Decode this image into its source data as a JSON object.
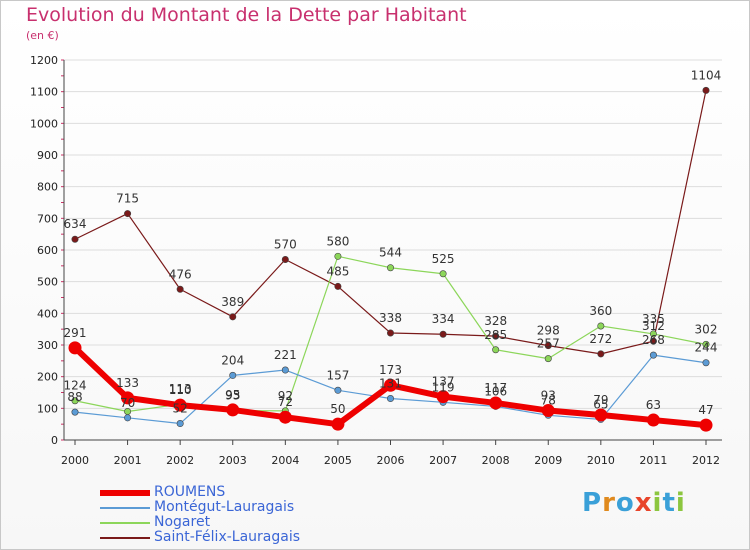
{
  "title": "Evolution du Montant de la Dette par Habitant",
  "subtitle": "(en €)",
  "logo": {
    "letters": [
      "P",
      "r",
      "o",
      "x",
      "i",
      "t",
      "i"
    ],
    "colors": [
      "#3aa0d8",
      "#e08a1e",
      "#3aa0d8",
      "#e8442a",
      "#8cc63f",
      "#3aa0d8",
      "#8cc63f"
    ]
  },
  "chart_data": {
    "type": "line",
    "x": [
      "2000",
      "2001",
      "2002",
      "2003",
      "2004",
      "2005",
      "2006",
      "2007",
      "2008",
      "2009",
      "2010",
      "2011",
      "2012"
    ],
    "ylim": [
      0,
      1200
    ],
    "yticks": [
      "0",
      "100",
      "200",
      "300",
      "400",
      "500",
      "600",
      "700",
      "800",
      "900",
      "1000",
      "1100",
      "1200"
    ],
    "grid": true,
    "legend_position": "bottom-left",
    "series": [
      {
        "name": "Saint-Félix-Lauragais",
        "color": "#7a1a1a",
        "width": 1.2,
        "values": [
          634,
          715,
          476,
          389,
          570,
          485,
          338,
          334,
          328,
          298,
          272,
          312,
          1104
        ],
        "labels": [
          "634",
          "715",
          "476",
          "389",
          "570",
          "485",
          "338",
          "334",
          "328",
          "298",
          "272",
          "312",
          "1104"
        ]
      },
      {
        "name": "Nogaret",
        "color": "#8cd65a",
        "width": 1.2,
        "values": [
          124,
          90,
          113,
          93,
          92,
          580,
          544,
          525,
          285,
          257,
          360,
          335,
          302
        ],
        "labels": [
          "124",
          "",
          "113",
          "93",
          "92",
          "580",
          "544",
          "525",
          "285",
          "257",
          "360",
          "335",
          "302"
        ]
      },
      {
        "name": "Montégut-Lauragais",
        "color": "#5b9bd5",
        "width": 1.2,
        "values": [
          88,
          70,
          52,
          204,
          221,
          157,
          131,
          119,
          106,
          78,
          65,
          268,
          244
        ],
        "labels": [
          "88",
          "70",
          "52",
          "204",
          "221",
          "157",
          "131",
          "119",
          "106",
          "78",
          "65",
          "268",
          "244"
        ]
      },
      {
        "name": "ROUMENS",
        "color": "#ee0000",
        "width": 6,
        "values": [
          291,
          133,
          110,
          95,
          72,
          50,
          173,
          137,
          117,
          93,
          79,
          63,
          47
        ],
        "labels": [
          "291",
          "133",
          "110",
          "95",
          "72",
          "50",
          "173",
          "137",
          "117",
          "93",
          "79",
          "63",
          "47"
        ]
      }
    ]
  }
}
